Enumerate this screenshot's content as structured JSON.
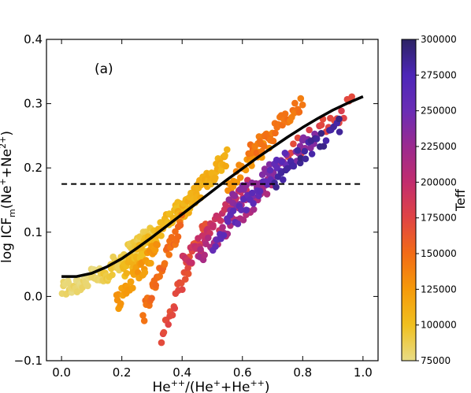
{
  "chart_data": {
    "type": "scatter",
    "panel_label": "(a)",
    "ylabel": "log ICF_m(Ne^+ +Ne^2+)",
    "ylabel_parts": {
      "prefix": "log ICF",
      "sub": "m",
      "mid": "(Ne",
      "sup1": "+",
      "sep": "+Ne",
      "sup2": "2+",
      "end": ")"
    },
    "xlabel": "He++/(He+ +He++)",
    "xlabel_parts": {
      "a": "He",
      "a_sup": "++",
      "b": "/(He",
      "b_sup": "+",
      "c": "+He",
      "c_sup": "++",
      "d": ")"
    },
    "xlim": [
      -0.05,
      1.05
    ],
    "ylim": [
      -0.1,
      0.4
    ],
    "x_ticks": [
      0.0,
      0.2,
      0.4,
      0.6,
      0.8,
      1.0
    ],
    "x_tick_labels": [
      "0.0",
      "0.2",
      "0.4",
      "0.6",
      "0.8",
      "1.0"
    ],
    "y_ticks": [
      -0.1,
      0.0,
      0.1,
      0.2,
      0.3,
      0.4
    ],
    "y_tick_labels": [
      "−0.1",
      "0.0",
      "0.1",
      "0.2",
      "0.3",
      "0.4"
    ],
    "grid": false,
    "fit_curve": {
      "style": "solid",
      "color": "#000000",
      "x": [
        0.0,
        0.05,
        0.1,
        0.15,
        0.2,
        0.25,
        0.3,
        0.35,
        0.4,
        0.45,
        0.5,
        0.55,
        0.6,
        0.65,
        0.7,
        0.75,
        0.8,
        0.85,
        0.9,
        0.95,
        1.0
      ],
      "y": [
        0.031,
        0.031,
        0.036,
        0.046,
        0.059,
        0.075,
        0.092,
        0.11,
        0.128,
        0.146,
        0.164,
        0.182,
        0.199,
        0.216,
        0.232,
        0.248,
        0.263,
        0.277,
        0.29,
        0.301,
        0.311
      ]
    },
    "reference_line": {
      "style": "dashed",
      "color": "#000000",
      "y": 0.175,
      "x_range": [
        0.0,
        1.0
      ]
    },
    "colorbar": {
      "title": "Teff",
      "min": 75000,
      "max": 300000,
      "ticks": [
        75000,
        100000,
        125000,
        150000,
        175000,
        200000,
        225000,
        250000,
        275000,
        300000
      ],
      "tick_labels": [
        "75000",
        "100000",
        "125000",
        "150000",
        "175000",
        "200000",
        "225000",
        "250000",
        "275000",
        "300000"
      ],
      "colormap": [
        "#e8dc86",
        "#f0c020",
        "#f59a0a",
        "#f26b16",
        "#e04444",
        "#c22d6e",
        "#9b2a8f",
        "#6a2db5",
        "#4d27b8",
        "#2c2364"
      ]
    },
    "scatter_groups": [
      {
        "teff": 80000,
        "x": [
          0.0,
          0.14
        ],
        "y": [
          0.01,
          0.035
        ],
        "n": 45
      },
      {
        "teff": 90000,
        "x": [
          0.13,
          0.3
        ],
        "y": [
          0.03,
          0.1
        ],
        "n": 55
      },
      {
        "teff": 105000,
        "x": [
          0.2,
          0.42
        ],
        "y": [
          0.04,
          0.15
        ],
        "n": 70
      },
      {
        "teff": 110000,
        "x": [
          0.38,
          0.55
        ],
        "y": [
          0.12,
          0.22
        ],
        "n": 60
      },
      {
        "teff": 125000,
        "x": [
          0.18,
          0.32
        ],
        "y": [
          -0.01,
          0.08
        ],
        "n": 45
      },
      {
        "teff": 130000,
        "x": [
          0.55,
          0.7
        ],
        "y": [
          0.17,
          0.25
        ],
        "n": 30
      },
      {
        "teff": 145000,
        "x": [
          0.62,
          0.8
        ],
        "y": [
          0.22,
          0.3
        ],
        "n": 45
      },
      {
        "teff": 150000,
        "x": [
          0.27,
          0.4
        ],
        "y": [
          -0.03,
          0.12
        ],
        "n": 40
      },
      {
        "teff": 170000,
        "x": [
          0.33,
          0.48
        ],
        "y": [
          -0.06,
          0.12
        ],
        "n": 35
      },
      {
        "teff": 175000,
        "x": [
          0.75,
          0.97
        ],
        "y": [
          0.22,
          0.3
        ],
        "n": 25
      },
      {
        "teff": 195000,
        "x": [
          0.4,
          0.62
        ],
        "y": [
          0.05,
          0.17
        ],
        "n": 45
      },
      {
        "teff": 215000,
        "x": [
          0.45,
          0.7
        ],
        "y": [
          0.06,
          0.18
        ],
        "n": 45
      },
      {
        "teff": 235000,
        "x": [
          0.55,
          0.85
        ],
        "y": [
          0.14,
          0.25
        ],
        "n": 50
      },
      {
        "teff": 260000,
        "x": [
          0.5,
          0.75
        ],
        "y": [
          0.08,
          0.22
        ],
        "n": 35
      },
      {
        "teff": 285000,
        "x": [
          0.7,
          0.93
        ],
        "y": [
          0.18,
          0.27
        ],
        "n": 30
      }
    ]
  }
}
